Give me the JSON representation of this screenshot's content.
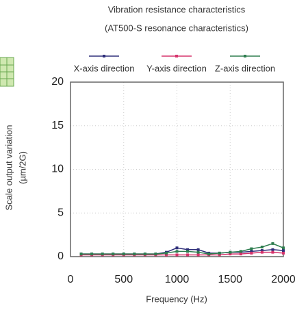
{
  "chart_data": {
    "type": "line",
    "title": "Vibration resistance characteristics",
    "subtitle": "(AT500-S resonance characteristics)",
    "x_label": "Frequency (Hz)",
    "y_label": "Scale output variation",
    "y_unit": "(µm/2G)",
    "x": [
      100,
      200,
      300,
      400,
      500,
      600,
      700,
      800,
      900,
      1000,
      1100,
      1200,
      1300,
      1400,
      1500,
      1600,
      1700,
      1800,
      1900,
      2000
    ],
    "series": [
      {
        "name": "X-axis direction",
        "color": "#2e2e7a",
        "values": [
          0.3,
          0.3,
          0.3,
          0.3,
          0.3,
          0.3,
          0.3,
          0.3,
          0.5,
          1.0,
          0.8,
          0.8,
          0.4,
          0.4,
          0.5,
          0.5,
          0.6,
          0.7,
          0.8,
          0.7
        ]
      },
      {
        "name": "Y-axis direction",
        "color": "#d6336c",
        "values": [
          0.2,
          0.2,
          0.2,
          0.2,
          0.2,
          0.2,
          0.2,
          0.2,
          0.2,
          0.2,
          0.2,
          0.2,
          0.2,
          0.2,
          0.3,
          0.3,
          0.4,
          0.5,
          0.5,
          0.4
        ]
      },
      {
        "name": "Z-axis direction",
        "color": "#2e7d4f",
        "values": [
          0.3,
          0.3,
          0.3,
          0.3,
          0.3,
          0.3,
          0.3,
          0.3,
          0.4,
          0.6,
          0.6,
          0.5,
          0.3,
          0.4,
          0.5,
          0.6,
          0.9,
          1.1,
          1.5,
          1.0
        ]
      }
    ],
    "xlim": [
      0,
      2000
    ],
    "xticks": [
      0,
      500,
      1000,
      1500,
      2000
    ],
    "ylim": [
      0,
      20
    ],
    "yticks": [
      0,
      5,
      10,
      15,
      20
    ],
    "grid": true
  }
}
